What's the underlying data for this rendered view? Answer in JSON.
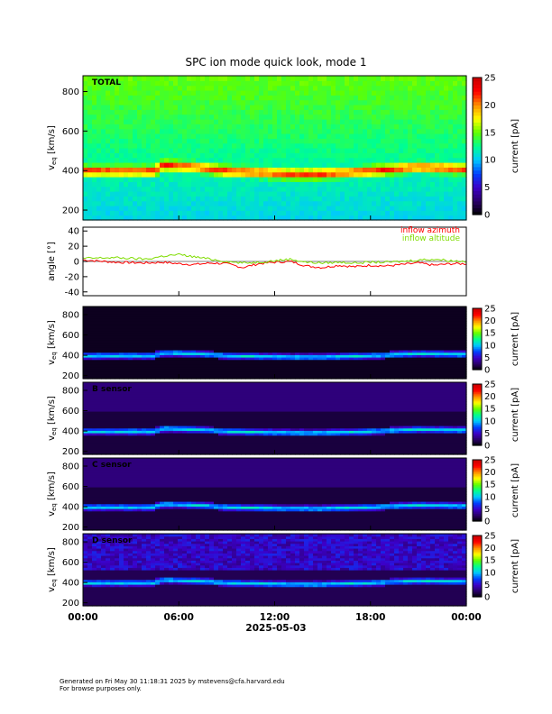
{
  "title": "SPC ion mode quick look, mode 1",
  "footer": {
    "line1": "Generated on Fri May 30 11:18:31 2025 by mstevens@cfa.harvard.edu",
    "line2": "For browse purposes only."
  },
  "colors": {
    "azimuth": "#ff0000",
    "altitude": "#7fdc00",
    "colormap": [
      "#000000",
      "#2a0068",
      "#3c00c8",
      "#0040ff",
      "#00c8ff",
      "#00ff90",
      "#60ff00",
      "#ffff00",
      "#ff9000",
      "#ff0000",
      "#c80000"
    ]
  },
  "chart_data": [
    {
      "type": "heatmap",
      "panel": "total",
      "label": "TOTAL",
      "xlabel": "",
      "ylabel": "v_eq [km/s]",
      "ylim": [
        150,
        880
      ],
      "yticks": [
        200,
        400,
        600,
        800
      ],
      "colorbar": {
        "label": "current [pA]",
        "range": [
          0,
          25
        ],
        "ticks": [
          0,
          5,
          10,
          15,
          20,
          25
        ]
      },
      "x_ticks": [
        "00:00",
        "06:00",
        "12:00",
        "18:00",
        "00:00"
      ],
      "peak_speed_km_s": [
        {
          "t": 0,
          "v": 400
        },
        {
          "t": 4.5,
          "v": 400
        },
        {
          "t": 5.0,
          "v": 430
        },
        {
          "t": 7.0,
          "v": 420
        },
        {
          "t": 9.0,
          "v": 400
        },
        {
          "t": 13.0,
          "v": 385
        },
        {
          "t": 15.0,
          "v": 385
        },
        {
          "t": 18.0,
          "v": 400
        },
        {
          "t": 21.0,
          "v": 420
        },
        {
          "t": 24.0,
          "v": 410
        }
      ]
    },
    {
      "type": "line",
      "panel": "angle",
      "ylabel": "angle [°]",
      "ylim": [
        -45,
        45
      ],
      "yticks": [
        -40,
        -20,
        0,
        20,
        40
      ],
      "series": [
        {
          "name": "inflow azimuth",
          "x": [
            0,
            2,
            4,
            5,
            6,
            7,
            8,
            9,
            10,
            11,
            12,
            13,
            14,
            15,
            16,
            17,
            18,
            19,
            20,
            21,
            22,
            23,
            24
          ],
          "values": [
            2,
            -1,
            -2,
            -1,
            -3,
            -4,
            -2,
            -3,
            -8,
            -3,
            -1,
            0,
            -6,
            -8,
            -5,
            -7,
            -5,
            -6,
            -4,
            -2,
            -5,
            -3,
            -3
          ]
        },
        {
          "name": "inflow altitude",
          "x": [
            0,
            2,
            4,
            5,
            6,
            7,
            8,
            9,
            10,
            11,
            12,
            13,
            14,
            15,
            16,
            17,
            18,
            19,
            20,
            21,
            22,
            23,
            24
          ],
          "values": [
            4,
            5,
            3,
            7,
            9,
            6,
            3,
            0,
            -2,
            -1,
            1,
            3,
            -1,
            -2,
            -1,
            -2,
            -1,
            -1,
            0,
            2,
            3,
            1,
            0
          ]
        }
      ]
    },
    {
      "type": "heatmap",
      "panel": "A",
      "label": "",
      "ylabel": "v_eq [km/s]",
      "ylim": [
        170,
        880
      ],
      "yticks": [
        200,
        400,
        600,
        800
      ],
      "colorbar": {
        "label": "current [pA]",
        "range": [
          0,
          25
        ],
        "ticks": [
          0,
          5,
          10,
          15,
          20,
          25
        ]
      }
    },
    {
      "type": "heatmap",
      "panel": "B",
      "label": "B sensor",
      "ylabel": "v_eq [km/s]",
      "ylim": [
        170,
        880
      ],
      "yticks": [
        200,
        400,
        600,
        800
      ],
      "colorbar": {
        "label": "current [pA]",
        "range": [
          0,
          25
        ],
        "ticks": [
          0,
          5,
          10,
          15,
          20,
          25
        ]
      }
    },
    {
      "type": "heatmap",
      "panel": "C",
      "label": "C sensor",
      "ylabel": "v_eq [km/s]",
      "ylim": [
        170,
        880
      ],
      "yticks": [
        200,
        400,
        600,
        800
      ],
      "colorbar": {
        "label": "current [pA]",
        "range": [
          0,
          25
        ],
        "ticks": [
          0,
          5,
          10,
          15,
          20,
          25
        ]
      }
    },
    {
      "type": "heatmap",
      "panel": "D",
      "label": "D sensor",
      "ylabel": "v_eq [km/s]",
      "ylim": [
        170,
        880
      ],
      "yticks": [
        200,
        400,
        600,
        800
      ],
      "colorbar": {
        "label": "current [pA]",
        "range": [
          0,
          25
        ],
        "ticks": [
          0,
          5,
          10,
          15,
          20,
          25
        ]
      },
      "xlabel": "2025-05-03",
      "x_ticks": [
        "00:00",
        "06:00",
        "12:00",
        "18:00",
        "00:00"
      ]
    }
  ]
}
